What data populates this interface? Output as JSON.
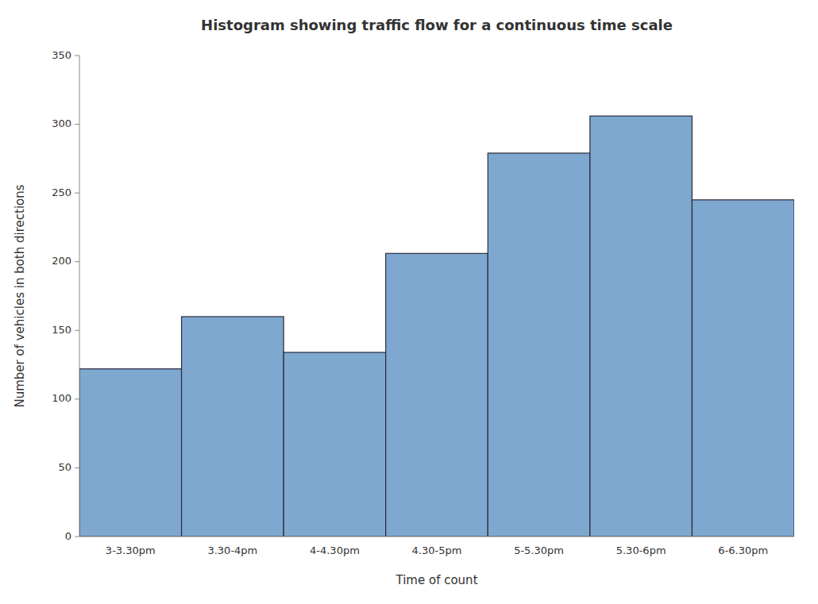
{
  "chart_data": {
    "type": "bar",
    "title": "Histogram showing traffic flow for a continuous time scale",
    "xlabel": "Time of count",
    "ylabel": "Number of vehicles in both directions",
    "categories": [
      "3-3.30pm",
      "3.30-4pm",
      "4-4.30pm",
      "4.30-5pm",
      "5-5.30pm",
      "5.30-6pm",
      "6-6.30pm"
    ],
    "values": [
      122,
      160,
      134,
      206,
      279,
      306,
      245
    ],
    "color": "#7fa8d0",
    "ylim": [
      0,
      350
    ],
    "yticks": [
      0,
      50,
      100,
      150,
      200,
      250,
      300,
      350
    ],
    "grid": false
  }
}
